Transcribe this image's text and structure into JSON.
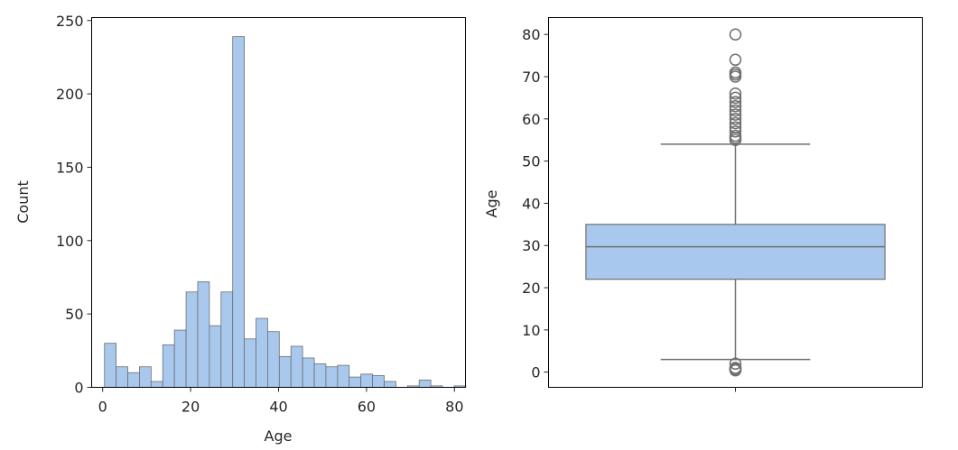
{
  "chart_data": [
    {
      "type": "histogram",
      "xlabel": "Age",
      "ylabel": "Count",
      "xlim": [
        -2.5,
        82.5
      ],
      "ylim": [
        0,
        252
      ],
      "xticks": [
        0,
        20,
        40,
        60,
        80
      ],
      "yticks": [
        0,
        50,
        100,
        150,
        200,
        250
      ],
      "bin_start": 0.42,
      "bin_width": 2.65,
      "counts": [
        30,
        14,
        10,
        14,
        4,
        29,
        39,
        65,
        72,
        42,
        65,
        239,
        33,
        47,
        38,
        21,
        28,
        20,
        16,
        14,
        15,
        7,
        9,
        8,
        4,
        0,
        1,
        5,
        1,
        0,
        1
      ],
      "bar_color": "#a8c8ee",
      "edge_color": "#6e6e6e"
    },
    {
      "type": "box",
      "xlabel": "",
      "ylabel": "Age",
      "ylim": [
        -3.6,
        84
      ],
      "yticks": [
        0,
        10,
        20,
        30,
        40,
        50,
        60,
        70,
        80
      ],
      "box": {
        "q1": 22,
        "median": 29.7,
        "q3": 35,
        "whisker_low": 3,
        "whisker_high": 54
      },
      "fliers": [
        0.42,
        0.67,
        0.75,
        0.83,
        0.92,
        1,
        2,
        55,
        55.5,
        56,
        57,
        58,
        59,
        60,
        61,
        62,
        63,
        64,
        65,
        66,
        70,
        70.5,
        71,
        74,
        80
      ],
      "box_color": "#a8c8ee",
      "line_color": "#707070"
    }
  ]
}
